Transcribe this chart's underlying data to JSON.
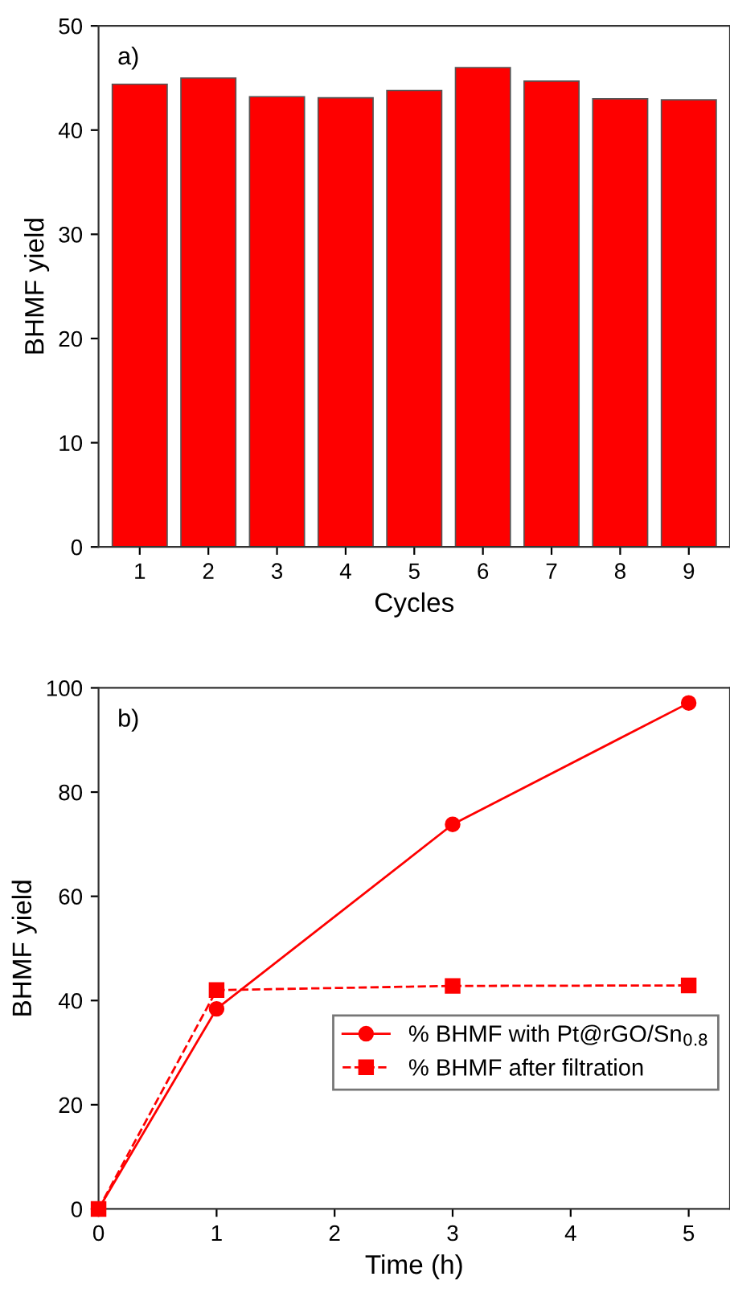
{
  "chart_data": [
    {
      "type": "bar",
      "categories": [
        "1",
        "2",
        "3",
        "4",
        "5",
        "6",
        "7",
        "8",
        "9"
      ],
      "values": [
        44.4,
        45.0,
        43.2,
        43.1,
        43.8,
        46.0,
        44.7,
        43.0,
        42.9
      ],
      "color": "#fe0000",
      "xlabel": "Cycles",
      "ylabel": "BHMF yield",
      "ylim": [
        0,
        50
      ],
      "yticks": [
        0,
        10,
        20,
        30,
        40,
        50
      ],
      "grid": false,
      "legend": false,
      "annotations": [
        "a)"
      ]
    },
    {
      "type": "line",
      "xlabel": "Time (h)",
      "ylabel": "BHMF yield",
      "xlim": [
        0,
        5.35
      ],
      "xticks": [
        0,
        1,
        2,
        3,
        4,
        5
      ],
      "ylim": [
        0,
        100
      ],
      "yticks": [
        0,
        20,
        40,
        60,
        80,
        100
      ],
      "grid": false,
      "legend": "center right",
      "annotations": [
        "b)"
      ],
      "series": [
        {
          "name": "% BHMF with Pt@rGO/Sn$_{0.8}$",
          "color": "#fe0000",
          "x": [
            0,
            1,
            3,
            5
          ],
          "values": [
            0,
            38.4,
            73.8,
            97.1
          ],
          "marker": "circle",
          "line_style": "solid"
        },
        {
          "name": "% BHMF after filtration",
          "color": "#fe0000",
          "x": [
            0,
            1,
            3,
            5
          ],
          "values": [
            0,
            42.0,
            42.8,
            42.9
          ],
          "marker": "square",
          "line_style": "dashed"
        }
      ]
    }
  ]
}
